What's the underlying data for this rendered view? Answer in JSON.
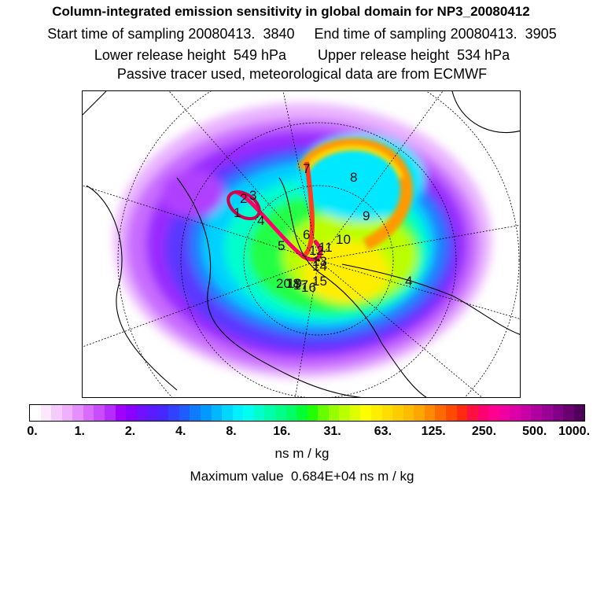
{
  "header": {
    "title": "Column-integrated emission sensitivity in global domain for NP3_20080412",
    "sampling_line": "Start time of sampling 20080413.  3840     End time of sampling 20080413.  3905",
    "height_line": "Lower release height  549 hPa        Upper release height  534 hPa",
    "tracer_line": "Passive tracer used, meteorological data are from ECMWF"
  },
  "colorbar": {
    "tick_labels": [
      "0.",
      "1.",
      "2.",
      "4.",
      "8.",
      "16.",
      "31.",
      "63.",
      "125.",
      "250.",
      "500.",
      "1000."
    ],
    "colors": [
      "#ffffff",
      "#fbe8ff",
      "#f4ccff",
      "#eeb0ff",
      "#e690ff",
      "#d96cff",
      "#c94cff",
      "#b52cff",
      "#a000ff",
      "#8a00ff",
      "#6f10ff",
      "#5a1cff",
      "#4628ff",
      "#3240ff",
      "#1f5cff",
      "#0f7cff",
      "#0099ff",
      "#00b8ff",
      "#00d6ff",
      "#00f0ff",
      "#00ffee",
      "#00ffcc",
      "#00ffaa",
      "#00ff88",
      "#00ff66",
      "#00ff33",
      "#22ff00",
      "#66ff00",
      "#99ff00",
      "#bbff00",
      "#ddff00",
      "#ffff00",
      "#ffee00",
      "#ffdd00",
      "#ffcc00",
      "#ffbb00",
      "#ffa600",
      "#ff8a00",
      "#ff6a00",
      "#ff4a00",
      "#ff2a10",
      "#ff1040",
      "#ff0070",
      "#ff0090",
      "#f000a0",
      "#dd00a6",
      "#c800a6",
      "#b000a0",
      "#980096",
      "#800086",
      "#680070",
      "#500058"
    ],
    "unit": "ns m / kg"
  },
  "maximum_label": "Maximum value  0.684E+04 ns m / kg",
  "map": {
    "point_labels": [
      "1",
      "2",
      "3",
      "4",
      "5",
      "6",
      "7",
      "8",
      "9",
      "10",
      "11",
      "12",
      "13",
      "14",
      "15",
      "16",
      "17",
      "18",
      "19",
      "20",
      "4"
    ]
  }
}
